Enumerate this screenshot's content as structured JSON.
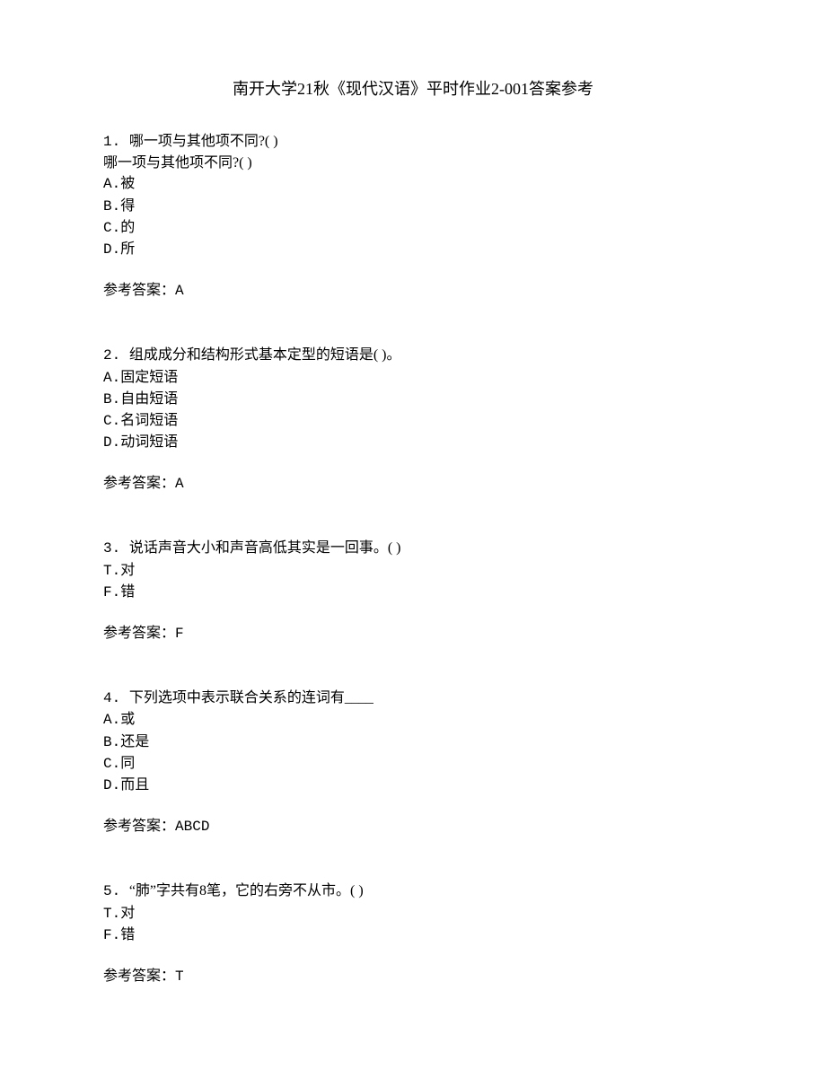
{
  "title": "南开大学21秋《现代汉语》平时作业2-001答案参考",
  "questions": [
    {
      "num": "1. ",
      "text": "哪一项与其他项不同?(  )",
      "repeat": "哪一项与其他项不同?(  )",
      "options": [
        {
          "label": "A.",
          "text": "被"
        },
        {
          "label": "B.",
          "text": "得"
        },
        {
          "label": "C.",
          "text": "的"
        },
        {
          "label": "D.",
          "text": "所"
        }
      ],
      "answer_label": "参考答案：",
      "answer_value": "A"
    },
    {
      "num": "2. ",
      "text": "组成成分和结构形式基本定型的短语是(  )。",
      "options": [
        {
          "label": "A.",
          "text": "固定短语"
        },
        {
          "label": "B.",
          "text": "自由短语"
        },
        {
          "label": "C.",
          "text": "名词短语"
        },
        {
          "label": "D.",
          "text": "动词短语"
        }
      ],
      "answer_label": "参考答案：",
      "answer_value": "A"
    },
    {
      "num": "3. ",
      "text": "说话声音大小和声音高低其实是一回事。(  )",
      "options": [
        {
          "label": "T.",
          "text": "对"
        },
        {
          "label": "F.",
          "text": "错"
        }
      ],
      "answer_label": "参考答案：",
      "answer_value": "F"
    },
    {
      "num": "4. ",
      "text": "下列选项中表示联合关系的连词有____",
      "options": [
        {
          "label": "A.",
          "text": "或"
        },
        {
          "label": "B.",
          "text": "还是"
        },
        {
          "label": "C.",
          "text": "同"
        },
        {
          "label": "D.",
          "text": "而且"
        }
      ],
      "answer_label": "参考答案：",
      "answer_value": "ABCD"
    },
    {
      "num": "5. ",
      "text": "“肺”字共有8笔，它的右旁不从市。(  )",
      "options": [
        {
          "label": "T.",
          "text": "对"
        },
        {
          "label": "F.",
          "text": "错"
        }
      ],
      "answer_label": "参考答案：",
      "answer_value": "T"
    }
  ]
}
